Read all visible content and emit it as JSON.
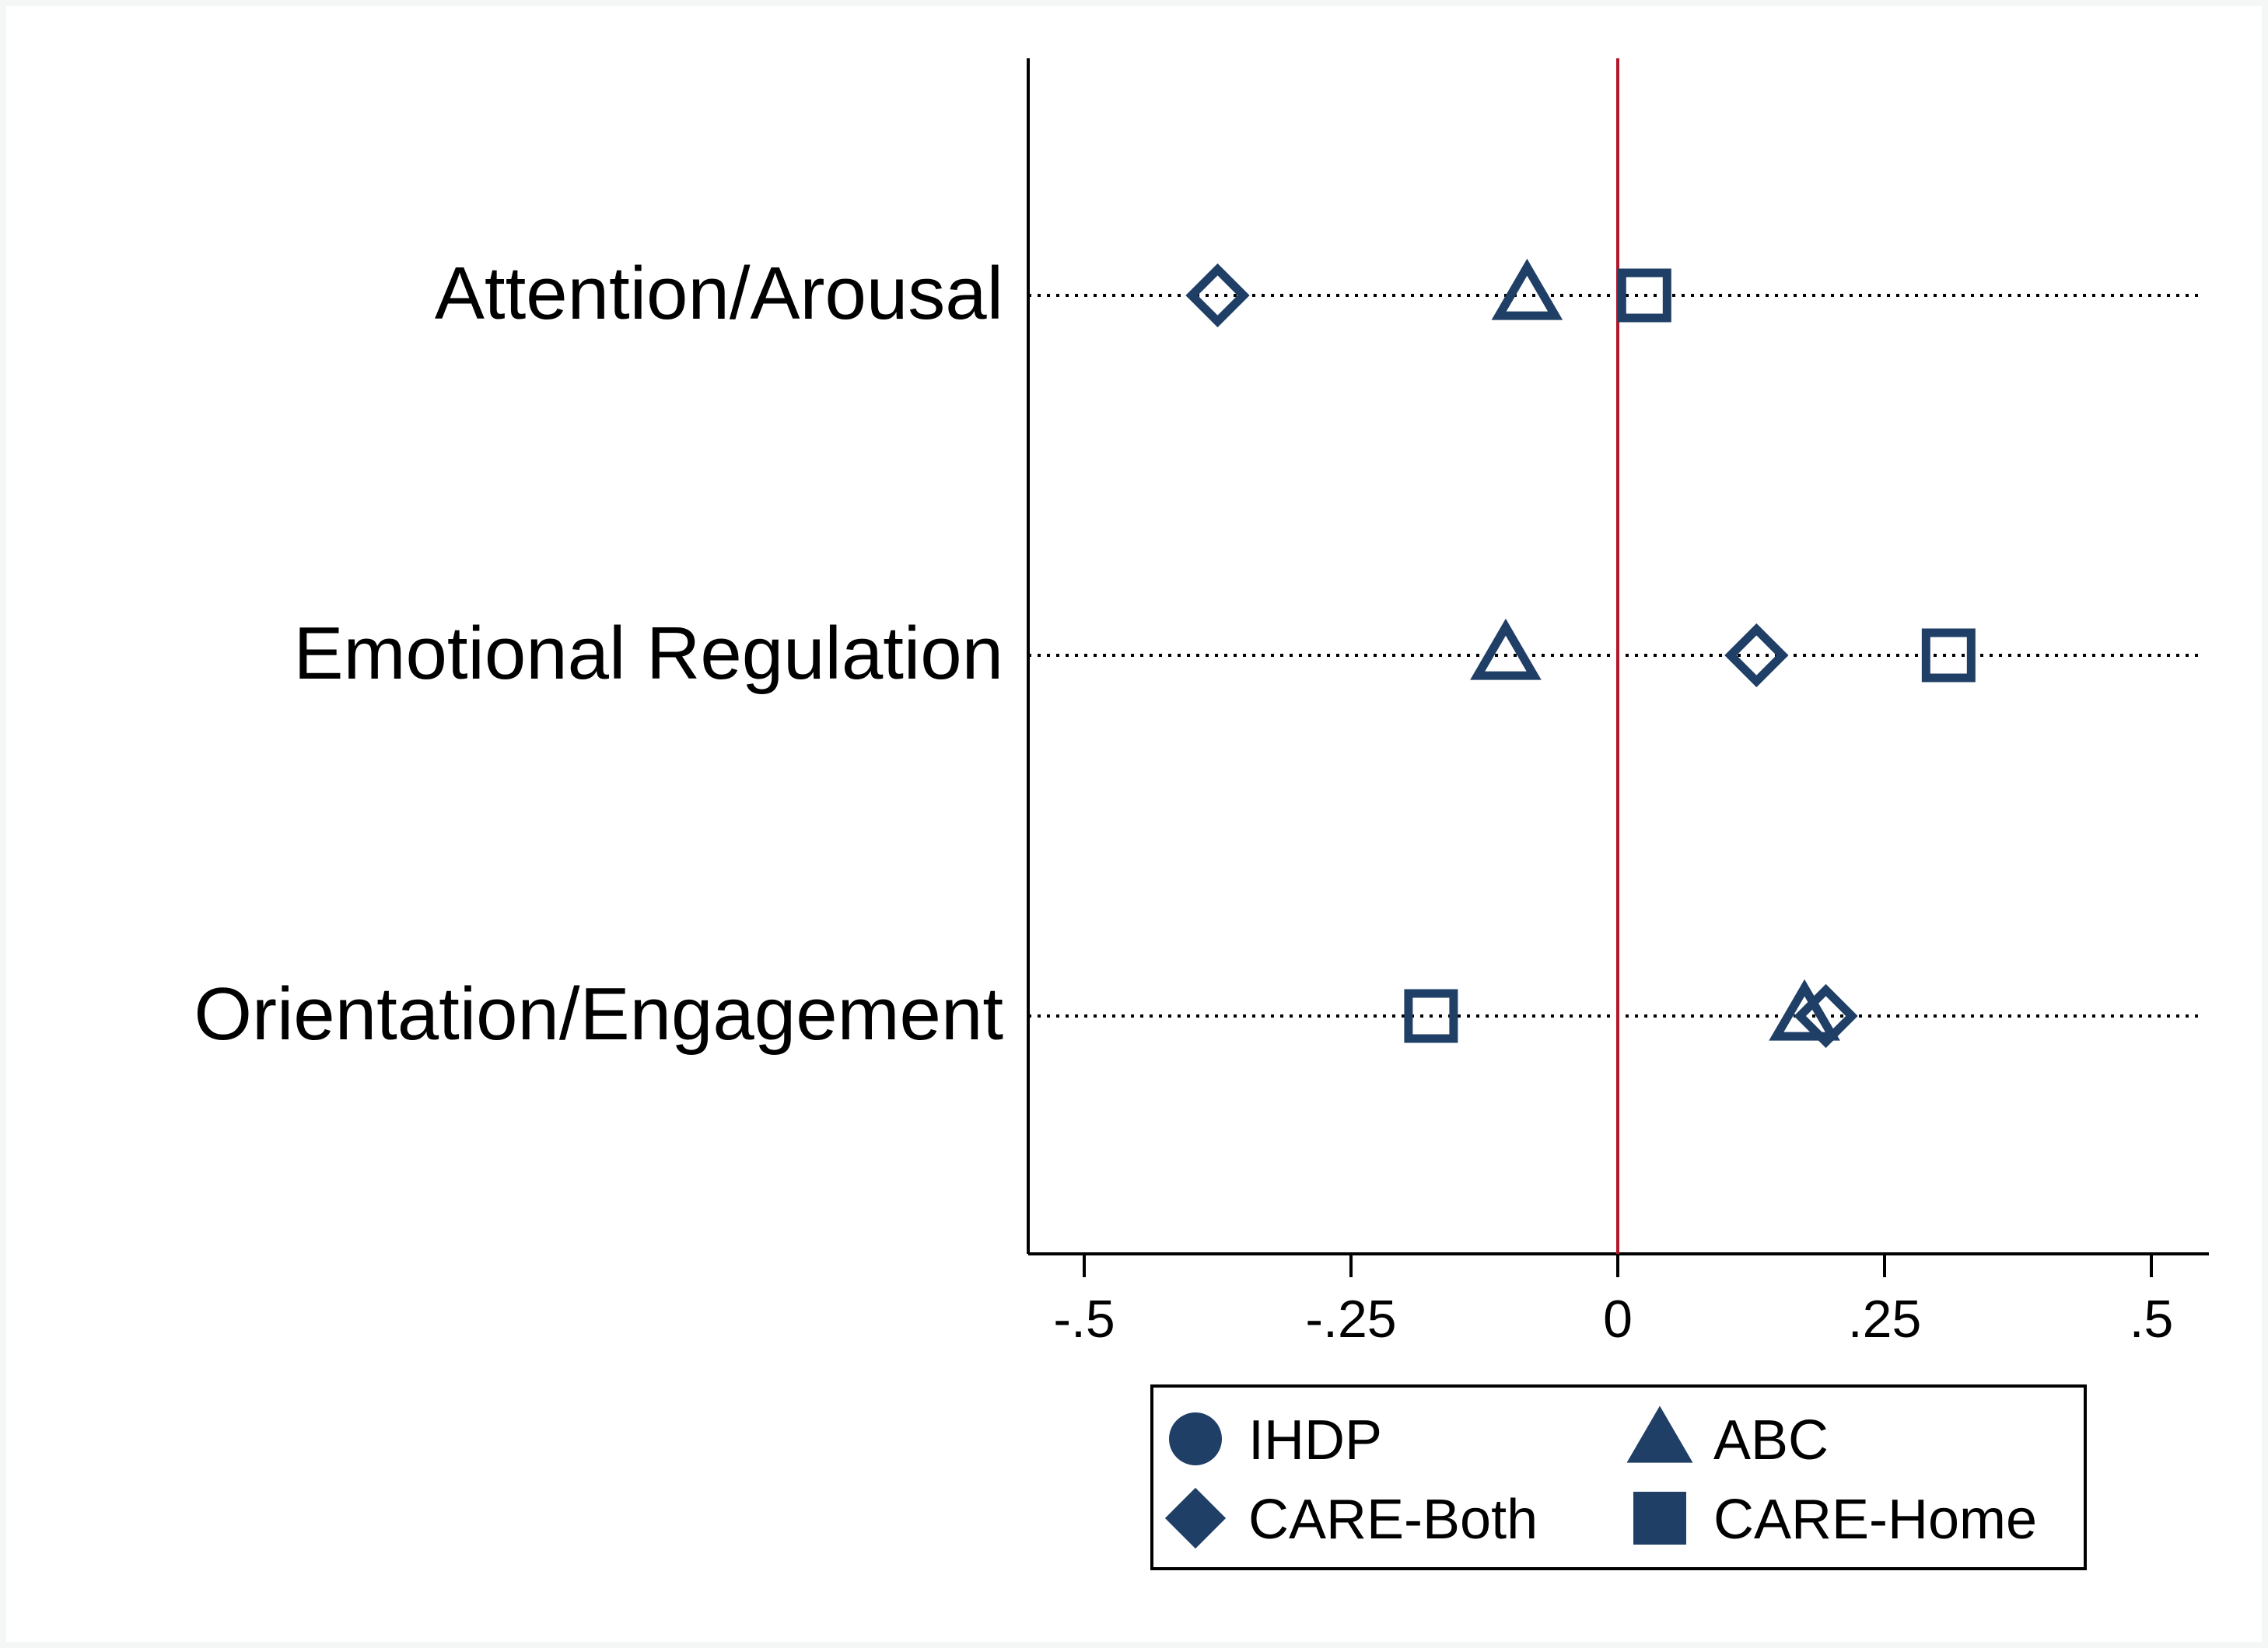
{
  "chart_data": {
    "type": "scatter",
    "title": "",
    "xlabel": "",
    "ylabel": "",
    "categories": [
      "Attention/Arousal",
      "Emotional Regulation",
      "Orientation/Engagement"
    ],
    "xlim": [
      -0.55,
      0.55
    ],
    "x_ticks": [
      -0.5,
      -0.25,
      0,
      0.25,
      0.5
    ],
    "x_tick_labels": [
      "-.5",
      "-.25",
      "0",
      ".25",
      ".5"
    ],
    "reference_line": {
      "x": 0,
      "color": "#b2182b"
    },
    "grid": "dotted horizontal guides at each category",
    "series": [
      {
        "name": "IHDP",
        "marker": "circle",
        "values": [
          null,
          null,
          null
        ]
      },
      {
        "name": "ABC",
        "marker": "triangle",
        "values": [
          -0.085,
          -0.105,
          0.175
        ]
      },
      {
        "name": "CARE-Both",
        "marker": "diamond",
        "values": [
          -0.375,
          0.13,
          0.195
        ]
      },
      {
        "name": "CARE-Home",
        "marker": "square",
        "values": [
          0.025,
          0.31,
          -0.175
        ]
      }
    ],
    "legend_placement": "bottom",
    "colors": {
      "marker": "#1f3f66",
      "axis": "#000000",
      "background": "#f4f7f6",
      "plot_bg": "#ffffff"
    }
  }
}
